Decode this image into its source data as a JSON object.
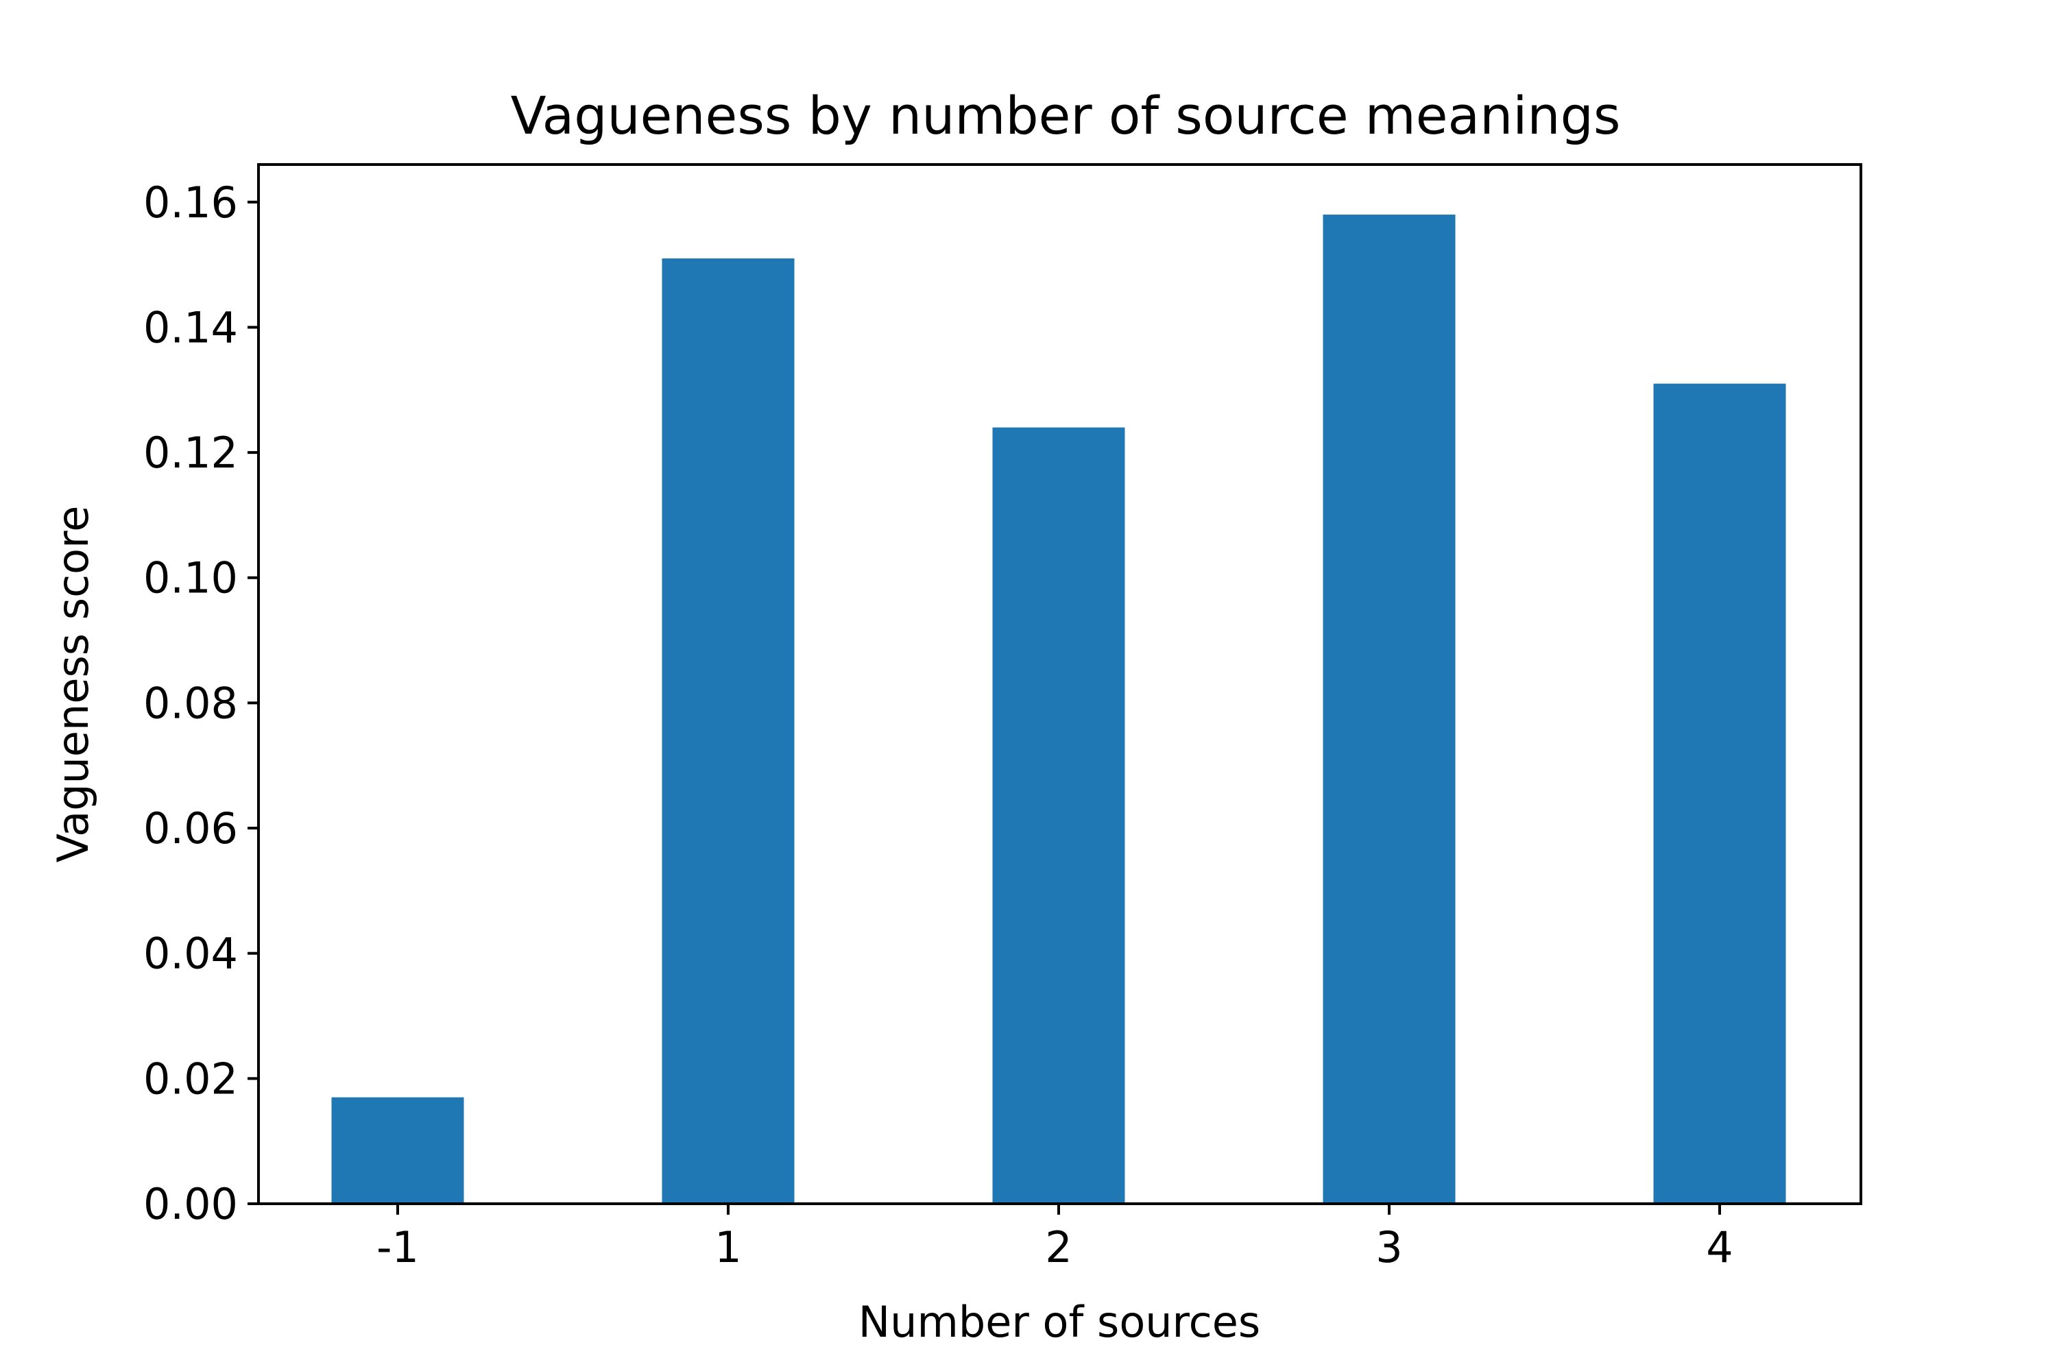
{
  "chart_data": {
    "type": "bar",
    "title": "Vagueness by number of source meanings",
    "xlabel": "Number of sources",
    "ylabel": "Vagueness score",
    "categories": [
      "-1",
      "1",
      "2",
      "3",
      "4"
    ],
    "values": [
      0.017,
      0.151,
      0.124,
      0.158,
      0.131
    ],
    "ylim": [
      0,
      0.166
    ],
    "yticks": [
      "0.00",
      "0.02",
      "0.04",
      "0.06",
      "0.08",
      "0.10",
      "0.12",
      "0.14",
      "0.16"
    ],
    "bar_color": "#1f77b4",
    "grid": false,
    "legend": "none"
  }
}
